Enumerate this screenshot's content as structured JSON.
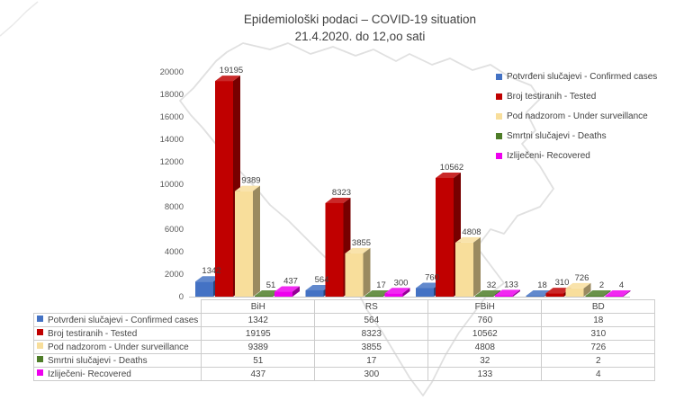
{
  "title": {
    "line1": "Epidemiološki podaci – COVID-19 situation",
    "line2": "21.4.2020. do 12,oo sati"
  },
  "chart_data": {
    "type": "bar",
    "style": "3d-column",
    "categories": [
      "BiH",
      "RS",
      "FBiH",
      "BD"
    ],
    "series": [
      {
        "label": "Potvrđeni slučajevi - Confirmed cases",
        "color": "#4472C4",
        "values": [
          1342,
          564,
          760,
          18
        ]
      },
      {
        "label": "Broj testiranih - Tested",
        "color": "#C00000",
        "values": [
          19195,
          8323,
          10562,
          310
        ]
      },
      {
        "label": "Pod nadzorom - Under surveillance",
        "color": "#F8DE9B",
        "values": [
          9389,
          3855,
          4808,
          726
        ]
      },
      {
        "label": "Smrtni slučajevi - Deaths",
        "color": "#4E7D28",
        "values": [
          51,
          17,
          32,
          2
        ]
      },
      {
        "label": "Izliječeni- Recovered",
        "color": "#EE00EE",
        "values": [
          437,
          300,
          133,
          4
        ]
      }
    ],
    "ylim": [
      0,
      20000
    ],
    "ytick_step": 2000,
    "grid": false,
    "legend_position": "right",
    "axis_text_color": "#595959",
    "label_text_color": "#404040",
    "map_outline_color": "#dadada"
  }
}
